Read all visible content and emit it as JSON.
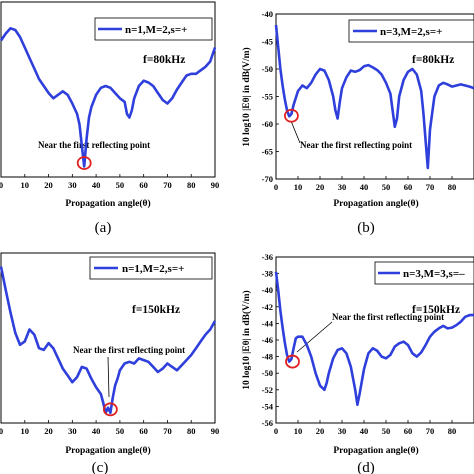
{
  "chart_data": [
    {
      "type": "line",
      "panel_label": "(a)",
      "legend": "n=1,M=2,s=+",
      "freq_label": "f=80kHz",
      "annotation": "Near the first reflecting point",
      "xlabel": "Propagation angle(θ)",
      "ylabel": "",
      "xticks": [
        "0",
        "10",
        "20",
        "30",
        "40",
        "50",
        "60",
        "70",
        "80",
        "90"
      ],
      "yticks": [],
      "xlim": [
        0,
        90
      ],
      "ylim": [
        0,
        1
      ],
      "color": "#2f3fdc",
      "marker_color": "#e02020",
      "marker": [
        35,
        0.08
      ],
      "series": [
        {
          "x": [
            0,
            2,
            4,
            6,
            8,
            10,
            12,
            14,
            16,
            18,
            20,
            22,
            24,
            26,
            28,
            30,
            32,
            33,
            34,
            35,
            36,
            37,
            38,
            40,
            42,
            44,
            46,
            48,
            50,
            52,
            53,
            54,
            55,
            56,
            58,
            60,
            62,
            64,
            66,
            68,
            70,
            72,
            74,
            76,
            78,
            80,
            82,
            84,
            86,
            88,
            90
          ],
          "y": [
            0.78,
            0.82,
            0.85,
            0.84,
            0.8,
            0.74,
            0.68,
            0.62,
            0.56,
            0.52,
            0.48,
            0.45,
            0.47,
            0.49,
            0.47,
            0.42,
            0.36,
            0.3,
            0.18,
            0.06,
            0.22,
            0.34,
            0.4,
            0.47,
            0.51,
            0.52,
            0.51,
            0.48,
            0.45,
            0.43,
            0.36,
            0.34,
            0.38,
            0.45,
            0.52,
            0.55,
            0.54,
            0.52,
            0.48,
            0.44,
            0.42,
            0.45,
            0.5,
            0.54,
            0.58,
            0.59,
            0.59,
            0.61,
            0.63,
            0.66,
            0.74
          ]
        }
      ]
    },
    {
      "type": "line",
      "panel_label": "(b)",
      "legend": "n=3,M=2,s=+",
      "freq_label": "f=80kHz",
      "annotation": "Near the first reflecting point",
      "xlabel": "Propagation angle(θ)",
      "ylabel": "10 log10 |Eθ| in dB(V/m)",
      "xticks": [
        "0",
        "10",
        "20",
        "30",
        "40",
        "50",
        "60",
        "70",
        "80"
      ],
      "yticks": [
        "-40",
        "-45",
        "-50",
        "-55",
        "-60",
        "-65",
        "-70"
      ],
      "xlim": [
        0,
        90
      ],
      "ylim": [
        -70,
        -40
      ],
      "color": "#2f3fdc",
      "marker_color": "#e02020",
      "marker": [
        7,
        -58.5
      ],
      "series": [
        {
          "x": [
            0,
            1,
            2,
            3,
            4,
            5,
            6,
            7,
            8,
            10,
            12,
            14,
            16,
            18,
            20,
            22,
            24,
            26,
            27,
            28,
            29,
            30,
            32,
            34,
            36,
            38,
            40,
            42,
            44,
            46,
            48,
            50,
            52,
            53,
            54,
            55,
            56,
            58,
            60,
            62,
            64,
            66,
            67,
            68,
            69,
            70,
            72,
            74,
            76,
            78,
            80,
            82,
            84,
            86,
            88,
            90
          ],
          "y": [
            -42,
            -46,
            -50,
            -53,
            -55.5,
            -57.5,
            -58.6,
            -58.2,
            -56.5,
            -54,
            -53,
            -53.5,
            -52.5,
            -51,
            -50,
            -50.3,
            -52,
            -55,
            -57.5,
            -59,
            -56,
            -53.5,
            -51.5,
            -50.3,
            -50.5,
            -50.2,
            -49.5,
            -49.3,
            -49.7,
            -50.2,
            -51,
            -52.5,
            -54.5,
            -57.5,
            -60.5,
            -59,
            -55,
            -52,
            -50.5,
            -50,
            -51,
            -54,
            -58,
            -63,
            -68,
            -61,
            -55,
            -53,
            -52.5,
            -52.8,
            -53.2,
            -53,
            -52.8,
            -53,
            -53.2,
            -53.5
          ]
        }
      ]
    },
    {
      "type": "line",
      "panel_label": "(c)",
      "legend": "n=1,M=2,s=+",
      "freq_label": "f=150kHz",
      "annotation": "Near the first reflecting point",
      "xlabel": "Propagation angle(θ)",
      "ylabel": "",
      "xticks": [
        "0",
        "10",
        "20",
        "30",
        "40",
        "50",
        "60",
        "70",
        "80",
        "90"
      ],
      "yticks": [],
      "xlim": [
        0,
        90
      ],
      "ylim": [
        0,
        1
      ],
      "color": "#2f3fdc",
      "marker_color": "#e02020",
      "marker": [
        46,
        0.08
      ],
      "series": [
        {
          "x": [
            0,
            2,
            4,
            6,
            8,
            10,
            12,
            14,
            16,
            18,
            20,
            22,
            24,
            26,
            28,
            30,
            32,
            34,
            36,
            38,
            40,
            42,
            43,
            44,
            45,
            46,
            47,
            48,
            49,
            50,
            52,
            54,
            56,
            58,
            60,
            62,
            64,
            66,
            68,
            70,
            72,
            74,
            76,
            78,
            80,
            82,
            84,
            86,
            88,
            90
          ],
          "y": [
            0.92,
            0.78,
            0.65,
            0.53,
            0.46,
            0.48,
            0.55,
            0.52,
            0.44,
            0.43,
            0.47,
            0.44,
            0.38,
            0.32,
            0.28,
            0.24,
            0.27,
            0.33,
            0.32,
            0.26,
            0.21,
            0.17,
            0.12,
            0.06,
            0.09,
            0.06,
            0.15,
            0.22,
            0.26,
            0.31,
            0.35,
            0.36,
            0.35,
            0.38,
            0.37,
            0.36,
            0.33,
            0.3,
            0.32,
            0.35,
            0.33,
            0.31,
            0.34,
            0.37,
            0.4,
            0.44,
            0.48,
            0.52,
            0.55,
            0.6
          ]
        }
      ]
    },
    {
      "type": "line",
      "panel_label": "(d)",
      "legend": "n=3,M=3,s=–",
      "freq_label": "f=150kHz",
      "annotation": "Near the first reflecting point",
      "xlabel": "Propagation angle(θ)",
      "ylabel": "10 log10 |Eθ| in dB(V/m)",
      "xticks": [
        "0",
        "10",
        "20",
        "30",
        "40",
        "50",
        "60",
        "70",
        "80"
      ],
      "yticks": [
        "-36",
        "-38",
        "-40",
        "-42",
        "-44",
        "-46",
        "-48",
        "-50",
        "-52",
        "-54",
        "-56"
      ],
      "xlim": [
        0,
        90
      ],
      "ylim": [
        -56,
        -36
      ],
      "color": "#2f3fdc",
      "marker_color": "#e02020",
      "marker": [
        7.5,
        -48.6
      ],
      "series": [
        {
          "x": [
            0,
            1,
            2,
            3,
            4,
            5,
            6,
            7,
            8,
            9,
            10,
            12,
            14,
            16,
            18,
            20,
            22,
            23,
            24,
            26,
            28,
            30,
            32,
            34,
            36,
            37,
            38,
            40,
            42,
            44,
            46,
            48,
            50,
            52,
            54,
            56,
            58,
            60,
            62,
            64,
            66,
            68,
            70,
            72,
            74,
            76,
            78,
            80,
            82,
            84,
            86,
            88,
            90
          ],
          "y": [
            -37.8,
            -40,
            -42.5,
            -44.5,
            -46.3,
            -47.8,
            -48.6,
            -48.3,
            -47,
            -45.8,
            -45.6,
            -45.6,
            -46.6,
            -48,
            -50,
            -51.5,
            -52,
            -51.2,
            -50,
            -48.2,
            -47.2,
            -47,
            -47.6,
            -49.2,
            -52,
            -53.8,
            -52.5,
            -49.5,
            -47.6,
            -47,
            -47.3,
            -48,
            -48.2,
            -47.8,
            -46.8,
            -46.4,
            -46.2,
            -46.6,
            -47.6,
            -48,
            -47.5,
            -46.6,
            -45.6,
            -45,
            -44.6,
            -44.3,
            -44.6,
            -44.5,
            -44.2,
            -43.8,
            -43.2,
            -43,
            -43
          ]
        }
      ]
    }
  ]
}
